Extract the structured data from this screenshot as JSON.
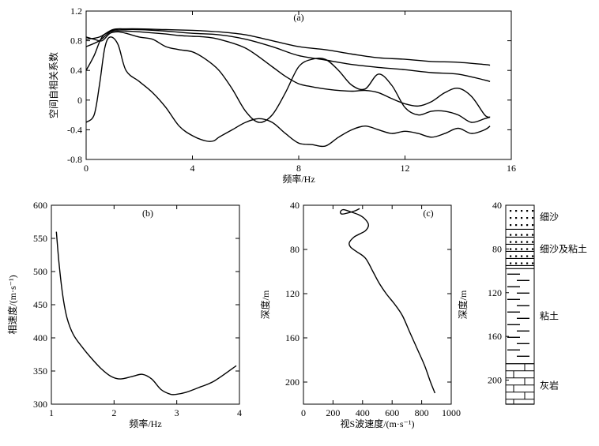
{
  "chart_data": [
    {
      "id": "a",
      "type": "line",
      "panel_label": "(a)",
      "xlabel": "频率/Hz",
      "ylabel": "空间自相关系数",
      "xlim": [
        0,
        16
      ],
      "ylim": [
        -0.8,
        1.2
      ],
      "xticks": [
        "0",
        "4",
        "8",
        "12",
        "16"
      ],
      "yticks": [
        "-0.8",
        "-0.4",
        "0",
        "0.4",
        "0.8",
        "1.2"
      ],
      "series": [
        {
          "x": [
            0,
            0.5,
            1,
            1.5,
            2,
            3,
            4,
            5,
            6,
            7,
            8,
            9,
            10,
            11,
            12,
            13,
            14,
            15,
            15.2
          ],
          "y": [
            0.82,
            0.85,
            0.95,
            0.96,
            0.96,
            0.95,
            0.94,
            0.92,
            0.88,
            0.8,
            0.72,
            0.68,
            0.62,
            0.57,
            0.55,
            0.52,
            0.51,
            0.48,
            0.47
          ]
        },
        {
          "x": [
            0,
            0.5,
            1,
            1.5,
            2,
            3,
            4,
            5,
            6,
            7,
            8,
            9,
            10,
            11,
            12,
            13,
            14,
            15,
            15.2
          ],
          "y": [
            0.72,
            0.8,
            0.94,
            0.95,
            0.95,
            0.93,
            0.9,
            0.88,
            0.82,
            0.72,
            0.6,
            0.54,
            0.48,
            0.44,
            0.41,
            0.37,
            0.35,
            0.27,
            0.25
          ]
        },
        {
          "x": [
            0,
            0.3,
            0.6,
            1,
            1.5,
            2,
            3,
            3.5,
            4,
            4.5,
            5,
            6,
            7,
            7.5,
            8,
            8.5,
            9,
            9.5,
            10,
            10.5,
            11,
            11.5,
            12,
            12.5,
            13,
            13.5,
            14,
            14.5,
            15,
            15.2
          ],
          "y": [
            0.4,
            0.6,
            0.85,
            0.93,
            0.93,
            0.92,
            0.89,
            0.87,
            0.86,
            0.85,
            0.82,
            0.7,
            0.45,
            0.32,
            0.22,
            0.18,
            0.15,
            0.13,
            0.12,
            0.13,
            0.1,
            0.02,
            -0.05,
            -0.08,
            -0.02,
            0.1,
            0.16,
            0.05,
            -0.2,
            -0.23
          ]
        },
        {
          "x": [
            0,
            0.3,
            0.6,
            0.9,
            1.2,
            1.5,
            2,
            2.5,
            3,
            3.5,
            4,
            4.5,
            5,
            5.5,
            6,
            6.5,
            7,
            7.5,
            8,
            8.5,
            9,
            9.5,
            10,
            10.5,
            11,
            11.5,
            12,
            12.5,
            13,
            13.5,
            14,
            14.5,
            15,
            15.2
          ],
          "y": [
            0.85,
            0.82,
            0.8,
            0.9,
            0.92,
            0.9,
            0.85,
            0.82,
            0.72,
            0.68,
            0.65,
            0.55,
            0.4,
            0.15,
            -0.15,
            -0.3,
            -0.2,
            0.1,
            0.45,
            0.55,
            0.55,
            0.4,
            0.2,
            0.15,
            0.35,
            0.2,
            -0.1,
            -0.2,
            -0.15,
            -0.15,
            -0.2,
            -0.3,
            -0.25,
            -0.23
          ]
        },
        {
          "x": [
            0,
            0.3,
            0.5,
            0.7,
            0.9,
            1.2,
            1.5,
            2,
            2.5,
            3,
            3.5,
            4,
            4.5,
            4.8,
            5,
            5.5,
            6,
            6.5,
            7,
            7.5,
            8,
            8.5,
            9,
            9.5,
            10,
            10.5,
            11,
            11.5,
            12,
            12.5,
            13,
            13.5,
            14,
            14.5,
            15,
            15.2
          ],
          "y": [
            -0.3,
            -0.2,
            0.2,
            0.7,
            0.85,
            0.75,
            0.4,
            0.25,
            0.1,
            -0.1,
            -0.35,
            -0.48,
            -0.55,
            -0.55,
            -0.5,
            -0.4,
            -0.3,
            -0.25,
            -0.3,
            -0.45,
            -0.58,
            -0.6,
            -0.62,
            -0.5,
            -0.4,
            -0.35,
            -0.4,
            -0.45,
            -0.42,
            -0.45,
            -0.5,
            -0.45,
            -0.38,
            -0.45,
            -0.4,
            -0.35
          ]
        }
      ]
    },
    {
      "id": "b",
      "type": "line",
      "panel_label": "(b)",
      "xlabel": "频率/Hz",
      "ylabel": "相速度/(m·s⁻¹)",
      "xlim": [
        1,
        4
      ],
      "ylim": [
        300,
        600
      ],
      "xticks": [
        "1",
        "2",
        "3",
        "4"
      ],
      "yticks": [
        "300",
        "350",
        "400",
        "450",
        "500",
        "550",
        "600"
      ],
      "series": [
        {
          "x": [
            1.08,
            1.12,
            1.18,
            1.25,
            1.35,
            1.5,
            1.65,
            1.8,
            1.95,
            2.1,
            2.3,
            2.45,
            2.6,
            2.75,
            2.9,
            3.0,
            3.15,
            3.35,
            3.6,
            3.95
          ],
          "y": [
            560,
            515,
            465,
            430,
            405,
            385,
            368,
            353,
            342,
            338,
            342,
            345,
            338,
            322,
            315,
            315,
            318,
            325,
            335,
            358
          ]
        }
      ]
    },
    {
      "id": "c",
      "type": "line",
      "panel_label": "(c)",
      "xlabel": "视S波速度/(m·s⁻¹)",
      "ylabel": "深度/m",
      "xlim": [
        0,
        1000
      ],
      "ylim": [
        220,
        40
      ],
      "xticks": [
        "0",
        "200",
        "400",
        "600",
        "800",
        "1000"
      ],
      "yticks": [
        "40",
        "80",
        "120",
        "160",
        "200"
      ],
      "series": [
        {
          "x": [
            380,
            350,
            300,
            260,
            250,
            270,
            320,
            380,
            420,
            440,
            420,
            380,
            340,
            310,
            320,
            360,
            420,
            470,
            510,
            560,
            620,
            670,
            720,
            770,
            820,
            860,
            890
          ],
          "y": [
            43,
            45,
            47,
            48,
            46,
            44,
            46,
            49,
            53,
            58,
            63,
            66,
            69,
            74,
            78,
            82,
            88,
            100,
            110,
            120,
            130,
            140,
            155,
            170,
            185,
            200,
            210
          ]
        }
      ]
    },
    {
      "id": "strata",
      "type": "table",
      "ylabel": "深度/m",
      "yticks": [
        "40",
        "80",
        "120",
        "160",
        "200"
      ],
      "layers": [
        {
          "label": "细沙",
          "top": 40,
          "bottom": 62
        },
        {
          "label": "细沙及粘土",
          "top": 62,
          "bottom": 98
        },
        {
          "label": "粘土",
          "top": 98,
          "bottom": 185
        },
        {
          "label": "灰岩",
          "top": 185,
          "bottom": 222
        }
      ]
    }
  ]
}
